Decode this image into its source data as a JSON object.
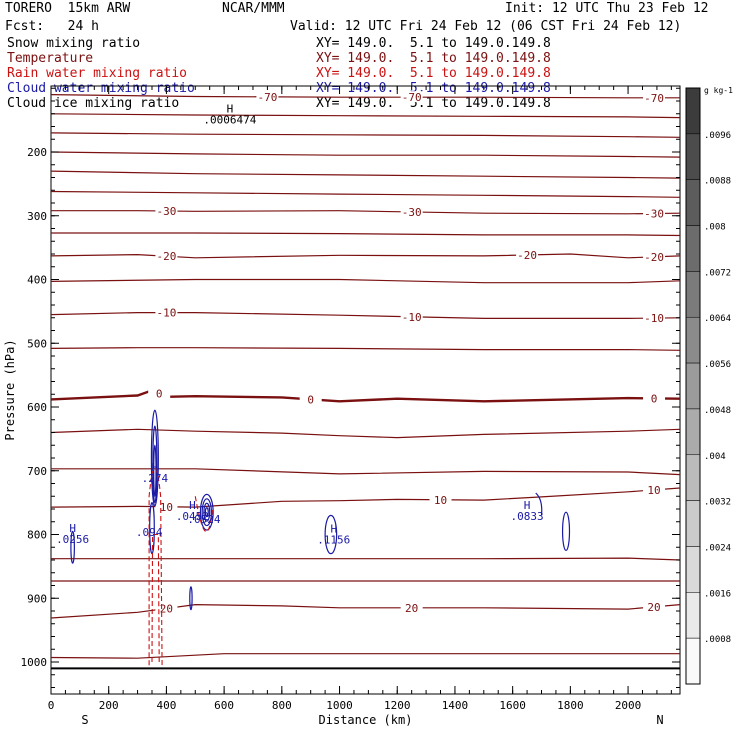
{
  "header": {
    "model": "TORERO  15km ARW",
    "center": "NCAR/MMM",
    "init": "Init: 12 UTC Thu 23 Feb 12",
    "fcst": "Fcst:   24 h",
    "valid": "Valid: 12 UTC Fri 24 Feb 12 (06 CST Fri 24 Feb 12)"
  },
  "colors": {
    "temperature": "#7a1010",
    "rain": "#cc1111",
    "cloud": "#1a1aa6",
    "snow": "#000000",
    "ice": "#000000"
  },
  "fields": [
    {
      "key": "snow",
      "label": "Snow mixing ratio",
      "xy": "XY= 149.0.  5.1 to 149.0.149.8"
    },
    {
      "key": "temperature",
      "label": "Temperature",
      "xy": "XY= 149.0.  5.1 to 149.0.149.8"
    },
    {
      "key": "rain",
      "label": "Rain water mixing ratio",
      "xy": "XY= 149.0.  5.1 to 149.0.149.8"
    },
    {
      "key": "cloud",
      "label": "Cloud water mixing ratio",
      "xy": "XY= 149.0.  5.1 to 149.0.149.8"
    },
    {
      "key": "ice",
      "label": "Cloud ice mixing ratio",
      "xy": "XY= 149.0.  5.1 to 149.0.149.8"
    }
  ],
  "chart_data": {
    "type": "contour cross-section",
    "xlabel": "Distance (km)",
    "ylabel": "Pressure (hPa)",
    "xlim": [
      0,
      2180
    ],
    "ylim": [
      1050,
      100
    ],
    "x_ticks": [
      "0",
      "200",
      "400",
      "600",
      "800",
      "1000",
      "1200",
      "1400",
      "1600",
      "1800",
      "2000"
    ],
    "y_ticks": [
      "200",
      "300",
      "400",
      "500",
      "600",
      "700",
      "800",
      "900",
      "1000"
    ],
    "end_labels": {
      "left": "S",
      "right": "N"
    },
    "colorbar": {
      "unit": "g kg-1",
      "ticks": [
        ".0096",
        ".0088",
        ".008",
        ".0072",
        ".0064",
        ".0056",
        ".0048",
        ".004",
        ".0032",
        ".0024",
        ".0016",
        ".0008"
      ]
    },
    "temperature_contours": [
      {
        "label": "-70",
        "points": [
          [
            0,
            110
          ],
          [
            500,
            113
          ],
          [
            1000,
            114
          ],
          [
            1500,
            114
          ],
          [
            2000,
            115
          ],
          [
            2180,
            115
          ]
        ]
      },
      {
        "label": "",
        "points": [
          [
            0,
            140
          ],
          [
            500,
            142
          ],
          [
            1000,
            143
          ],
          [
            1500,
            144
          ],
          [
            2000,
            145
          ],
          [
            2180,
            146
          ]
        ]
      },
      {
        "label": "",
        "points": [
          [
            0,
            170
          ],
          [
            500,
            172
          ],
          [
            1000,
            173
          ],
          [
            1500,
            174
          ],
          [
            2000,
            176
          ],
          [
            2180,
            177
          ]
        ]
      },
      {
        "label": "",
        "points": [
          [
            0,
            200
          ],
          [
            500,
            203
          ],
          [
            1000,
            205
          ],
          [
            1500,
            205
          ],
          [
            2000,
            207
          ],
          [
            2180,
            208
          ]
        ]
      },
      {
        "label": "",
        "points": [
          [
            0,
            230
          ],
          [
            500,
            234
          ],
          [
            1000,
            236
          ],
          [
            1500,
            238
          ],
          [
            2000,
            240
          ],
          [
            2180,
            241
          ]
        ]
      },
      {
        "label": "",
        "points": [
          [
            0,
            262
          ],
          [
            500,
            264
          ],
          [
            1000,
            266
          ],
          [
            1500,
            268
          ],
          [
            2000,
            270
          ],
          [
            2180,
            271
          ]
        ]
      },
      {
        "label": "-30",
        "points": [
          [
            0,
            292
          ],
          [
            300,
            292
          ],
          [
            500,
            293
          ],
          [
            1000,
            292
          ],
          [
            1500,
            296
          ],
          [
            2000,
            297
          ],
          [
            2180,
            296
          ]
        ]
      },
      {
        "label": "",
        "points": [
          [
            0,
            327
          ],
          [
            500,
            327
          ],
          [
            1000,
            328
          ],
          [
            1500,
            330
          ],
          [
            2000,
            330
          ],
          [
            2180,
            331
          ]
        ]
      },
      {
        "label": "-20",
        "points": [
          [
            0,
            363
          ],
          [
            300,
            361
          ],
          [
            500,
            366
          ],
          [
            1000,
            362
          ],
          [
            1500,
            363
          ],
          [
            1800,
            360
          ],
          [
            2000,
            366
          ],
          [
            2180,
            363
          ]
        ]
      },
      {
        "label": "",
        "points": [
          [
            0,
            403
          ],
          [
            500,
            400
          ],
          [
            1000,
            400
          ],
          [
            1500,
            405
          ],
          [
            2000,
            405
          ],
          [
            2180,
            402
          ]
        ]
      },
      {
        "label": "-10",
        "points": [
          [
            0,
            455
          ],
          [
            300,
            452
          ],
          [
            500,
            452
          ],
          [
            1000,
            456
          ],
          [
            1500,
            461
          ],
          [
            2000,
            461
          ],
          [
            2180,
            460
          ]
        ]
      },
      {
        "label": "",
        "points": [
          [
            0,
            508
          ],
          [
            300,
            507
          ],
          [
            500,
            507
          ],
          [
            1000,
            508
          ],
          [
            1500,
            510
          ],
          [
            2000,
            510
          ],
          [
            2180,
            511
          ]
        ]
      },
      {
        "label": "0",
        "points": [
          [
            0,
            588
          ],
          [
            300,
            582
          ],
          [
            350,
            574
          ],
          [
            400,
            584
          ],
          [
            500,
            583
          ],
          [
            800,
            585
          ],
          [
            1000,
            591
          ],
          [
            1200,
            587
          ],
          [
            1500,
            591
          ],
          [
            2000,
            586
          ],
          [
            2180,
            587
          ]
        ]
      },
      {
        "label": "",
        "points": [
          [
            0,
            640
          ],
          [
            300,
            635
          ],
          [
            500,
            638
          ],
          [
            800,
            641
          ],
          [
            1000,
            645
          ],
          [
            1200,
            648
          ],
          [
            1500,
            643
          ],
          [
            2000,
            638
          ],
          [
            2180,
            635
          ]
        ]
      },
      {
        "label": "",
        "points": [
          [
            0,
            697
          ],
          [
            500,
            697
          ],
          [
            1000,
            705
          ],
          [
            1500,
            701
          ],
          [
            2000,
            702
          ],
          [
            2180,
            706
          ]
        ]
      },
      {
        "label": "10",
        "points": [
          [
            0,
            757
          ],
          [
            300,
            756
          ],
          [
            500,
            757
          ],
          [
            800,
            748
          ],
          [
            1000,
            747
          ],
          [
            1200,
            745
          ],
          [
            1500,
            746
          ],
          [
            1700,
            741
          ],
          [
            2000,
            733
          ],
          [
            2180,
            727
          ]
        ]
      },
      {
        "label": "",
        "points": [
          [
            0,
            838
          ],
          [
            500,
            838
          ],
          [
            1000,
            838
          ],
          [
            1500,
            838
          ],
          [
            2000,
            837
          ],
          [
            2180,
            840
          ]
        ]
      },
      {
        "label": "",
        "points": [
          [
            0,
            873
          ],
          [
            500,
            873
          ],
          [
            1000,
            873
          ],
          [
            1500,
            873
          ],
          [
            2000,
            873
          ],
          [
            2180,
            873
          ]
        ]
      },
      {
        "label": "20",
        "points": [
          [
            0,
            931
          ],
          [
            300,
            922
          ],
          [
            500,
            910
          ],
          [
            800,
            912
          ],
          [
            1000,
            915
          ],
          [
            1500,
            915
          ],
          [
            2000,
            917
          ],
          [
            2180,
            910
          ]
        ]
      },
      {
        "label": "",
        "points": [
          [
            0,
            993
          ],
          [
            300,
            994
          ],
          [
            600,
            987
          ],
          [
            1000,
            987
          ],
          [
            1500,
            987
          ],
          [
            2000,
            987
          ],
          [
            2180,
            987
          ]
        ]
      }
    ],
    "extrema_labels": [
      {
        "x": 75,
        "p": 796,
        "symbol": "H",
        "value": ".0256"
      },
      {
        "x": 360,
        "p": 700,
        "symbol": "H",
        "value": ".274"
      },
      {
        "x": 340,
        "p": 785,
        "symbol": "",
        "value": ".094"
      },
      {
        "x": 490,
        "p": 760,
        "symbol": "H",
        "value": ".0452"
      },
      {
        "x": 530,
        "p": 765,
        "symbol": "",
        "value": ".0524"
      },
      {
        "x": 980,
        "p": 797,
        "symbol": "H",
        "value": ".1156"
      },
      {
        "x": 1650,
        "p": 760,
        "symbol": "H",
        "value": ".0833"
      },
      {
        "x": 620,
        "p": 138,
        "symbol": "H",
        "value": ".0006474"
      }
    ]
  }
}
